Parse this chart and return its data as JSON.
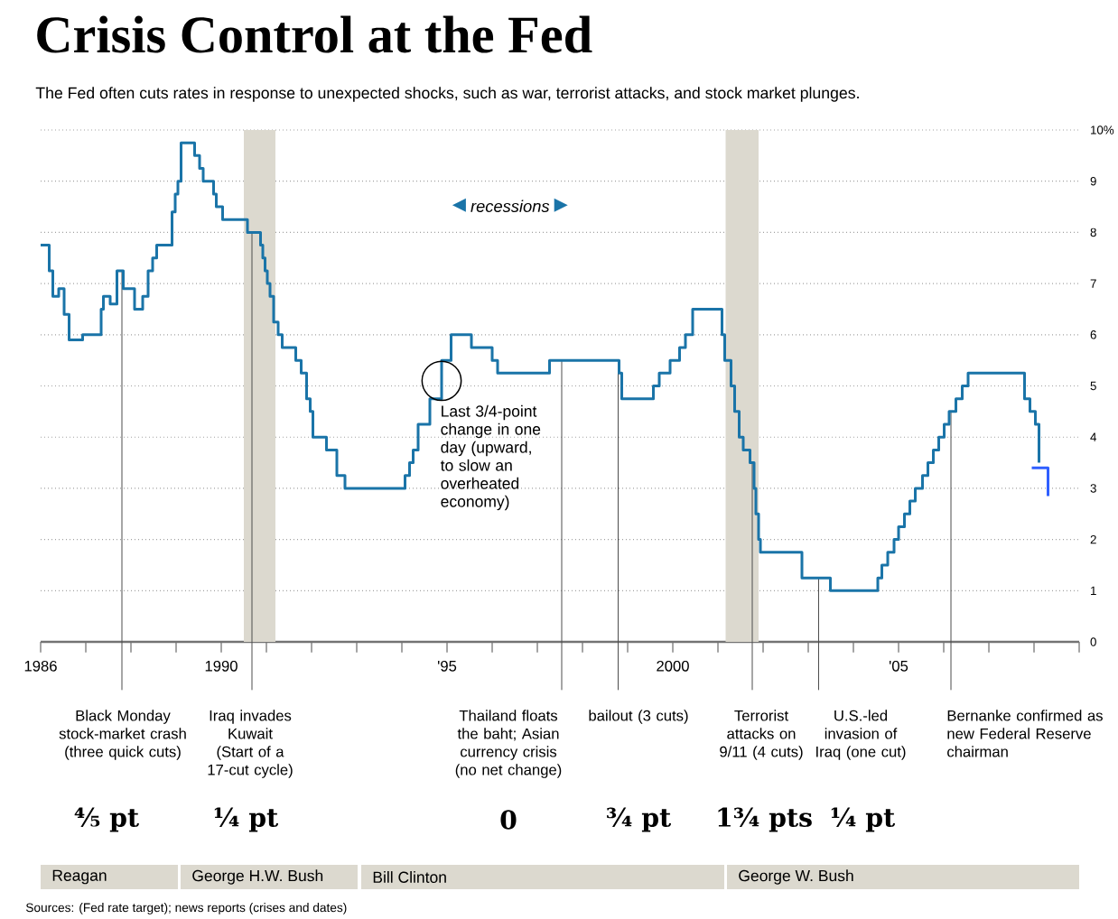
{
  "chart_data": {
    "type": "step",
    "title": "Crisis Control at the Fed",
    "subtitle": "The Fed often cuts rates in response to unexpected shocks, such as war, terrorist attacks, and stock market plunges.",
    "series": [
      {
        "color": "#1a74a8",
        "x": [
          1986.0,
          1986.19,
          1986.27,
          1986.4,
          1986.52,
          1986.63,
          1986.93,
          1987.34,
          1987.39,
          1987.54,
          1987.69,
          1987.83,
          1988.08,
          1988.26,
          1988.38,
          1988.48,
          1988.57,
          1988.91,
          1988.98,
          1989.04,
          1989.11,
          1989.41,
          1989.52,
          1989.6,
          1989.83,
          1989.89,
          1990.03,
          1990.58,
          1990.87,
          1990.92,
          1990.97,
          1991.02,
          1991.08,
          1991.16,
          1991.26,
          1991.35,
          1991.65,
          1991.77,
          1991.89,
          1991.97,
          1992.03,
          1992.33,
          1992.56,
          1992.74,
          1994.07,
          1994.17,
          1994.25,
          1994.36,
          1994.62,
          1994.88,
          1995.09,
          1995.54,
          1996.0,
          1996.12,
          1997.27,
          1998.81,
          1998.87,
          1999.57,
          1999.7,
          1999.94,
          2000.15,
          2000.28,
          2000.44,
          2001.09,
          2001.15,
          2001.29,
          2001.37,
          2001.47,
          2001.56,
          2001.71,
          2001.8,
          2001.84,
          2001.9,
          2001.94,
          2002.86,
          2003.49,
          2004.54,
          2004.63,
          2004.76,
          2004.9,
          2005.0,
          2005.13,
          2005.25,
          2005.37,
          2005.53,
          2005.65,
          2005.77,
          2005.89,
          2006.01,
          2006.12,
          2006.27,
          2006.41,
          2006.54,
          2007.79,
          2007.91,
          2008.03,
          2008.11
        ],
        "values": [
          7.75,
          7.25,
          6.75,
          6.9,
          6.4,
          5.9,
          6.0,
          6.5,
          6.75,
          6.6,
          7.25,
          6.9,
          6.5,
          6.75,
          7.25,
          7.5,
          7.75,
          8.4,
          8.75,
          9.0,
          9.75,
          9.5,
          9.25,
          9.0,
          8.75,
          8.5,
          8.25,
          8.0,
          7.75,
          7.5,
          7.25,
          7.0,
          6.75,
          6.25,
          6.0,
          5.75,
          5.5,
          5.25,
          4.75,
          4.5,
          4.0,
          3.75,
          3.25,
          3.0,
          3.25,
          3.5,
          3.75,
          4.25,
          4.75,
          5.5,
          6.0,
          5.75,
          5.5,
          5.25,
          5.5,
          5.25,
          4.75,
          5.0,
          5.25,
          5.5,
          5.75,
          6.0,
          6.5,
          6.0,
          5.5,
          5.0,
          4.5,
          4.0,
          3.75,
          3.5,
          3.0,
          2.5,
          2.0,
          1.75,
          1.25,
          1.0,
          1.25,
          1.5,
          1.75,
          2.0,
          2.25,
          2.5,
          2.75,
          3.0,
          3.25,
          3.5,
          3.75,
          4.0,
          4.25,
          4.5,
          4.75,
          5.0,
          5.25,
          4.75,
          4.5,
          4.25,
          3.5
        ]
      },
      {
        "type": "line",
        "color": "#2f5fff",
        "x": [
          2007.95,
          2008.31,
          2008.31
        ],
        "values": [
          3.4,
          3.4,
          2.85
        ]
      }
    ],
    "xlim": [
      1986,
      2009
    ],
    "xticks": [
      1986,
      {
        "value": 1987,
        "label": null
      },
      {
        "value": 1988,
        "label": null
      },
      {
        "value": 1989,
        "label": null
      },
      1990,
      {
        "value": 1991,
        "label": null
      },
      {
        "value": 1992,
        "label": null
      },
      {
        "value": 1993,
        "label": null
      },
      {
        "value": 1994,
        "label": null
      },
      {
        "value": 1995,
        "label": "'95"
      },
      {
        "value": 1996,
        "label": null
      },
      {
        "value": 1997,
        "label": null
      },
      {
        "value": 1998,
        "label": null
      },
      {
        "value": 1999,
        "label": null
      },
      2000,
      {
        "value": 2001,
        "label": null
      },
      {
        "value": 2002,
        "label": null
      },
      {
        "value": 2003,
        "label": null
      },
      {
        "value": 2004,
        "label": null
      },
      {
        "value": 2005,
        "label": "'05"
      },
      {
        "value": 2006,
        "label": null
      },
      {
        "value": 2007,
        "label": null
      },
      {
        "value": 2008,
        "label": null
      },
      {
        "value": 2009,
        "label": null
      }
    ],
    "ylim": [
      0,
      10
    ],
    "yticks": [
      0,
      1,
      2,
      3,
      4,
      5,
      6,
      7,
      8,
      9,
      {
        "value": 10,
        "label": "10%"
      }
    ],
    "grid": "y",
    "bands": [
      {
        "axis": "x",
        "from": 1990.5,
        "to": 1991.2,
        "color": "#dcd9cf"
      },
      {
        "axis": "x",
        "from": 2001.17,
        "to": 2001.9,
        "color": "#dcd9cf"
      }
    ],
    "ref_lines": [
      {
        "axis": "x",
        "value": 1987.8,
        "label": "Black Monday stock-market crash (three quick cuts)"
      },
      {
        "axis": "x",
        "value": 1990.68,
        "label": "Iraq invades Kuwait (Start of a 17-cut cycle)"
      },
      {
        "axis": "x",
        "value": 1997.54,
        "label": "Thailand floats the baht; Asian currency crisis (no net change)"
      },
      {
        "axis": "x",
        "value": 1998.79,
        "label": "bailout (3 cuts)"
      },
      {
        "axis": "x",
        "value": 2001.76,
        "label": "Terrorist attacks on 9/11 (4 cuts)"
      },
      {
        "axis": "x",
        "value": 2003.23,
        "label": "U.S.-led invasion of Iraq (one cut)"
      },
      {
        "axis": "x",
        "value": 2006.16,
        "label": "Bernanke confirmed as new Federal Reserve chairman"
      }
    ],
    "annotations": [
      "recessions",
      {
        "text": "Last 3/4-point change in one day (upward, to slow an overheated economy)",
        "x": 1994.88,
        "y": 5.1
      },
      "⅘ pt",
      "¼ pt",
      "0",
      "¾ pt",
      "1¾ pts",
      "¼ pt",
      "Reagan",
      "George H.W. Bush",
      "Bill Clinton",
      "George W. Bush",
      "Sources: (Fed rate target); news reports (crises and dates)"
    ]
  }
}
